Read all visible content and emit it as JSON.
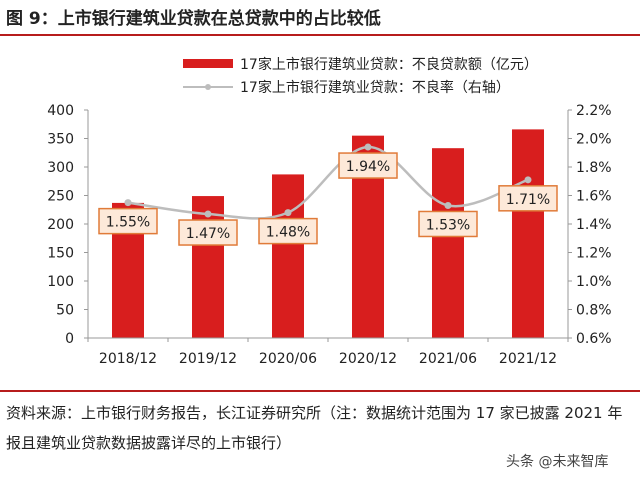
{
  "header": {
    "title": "图 9：上市银行建筑业贷款在总贷款中的占比较低"
  },
  "footer": {
    "source": "资料来源：上市银行财务报告，长江证券研究所（注：数据统计范围为 17 家已披露 2021 年报且建筑业贷款数据披露详尽的上市银行）",
    "watermark": "头条 @未来智库"
  },
  "chart_data": {
    "type": "bar",
    "categories": [
      "2018/12",
      "2019/12",
      "2020/06",
      "2020/12",
      "2021/06",
      "2021/12"
    ],
    "series": [
      {
        "name": "17家上市银行建筑业贷款：不良贷款额（亿元）",
        "kind": "bar",
        "axis": "left",
        "values": [
          237,
          249,
          287,
          355,
          333,
          366
        ],
        "color": "#d81e1e"
      },
      {
        "name": "17家上市银行建筑业贷款：不良率（右轴）",
        "kind": "line",
        "axis": "right",
        "values": [
          1.55,
          1.47,
          1.48,
          1.94,
          1.53,
          1.71
        ],
        "labels": [
          "1.55%",
          "1.47%",
          "1.48%",
          "1.94%",
          "1.53%",
          "1.71%"
        ],
        "color": "#bdbdbd"
      }
    ],
    "left_axis": {
      "range": [
        0,
        400
      ],
      "ticks": [
        "0",
        "50",
        "100",
        "150",
        "200",
        "250",
        "300",
        "350",
        "400"
      ]
    },
    "right_axis": {
      "range": [
        0.6,
        2.2
      ],
      "ticks": [
        "0.6%",
        "0.8%",
        "1.0%",
        "1.2%",
        "1.4%",
        "1.6%",
        "1.8%",
        "2.0%",
        "2.2%"
      ]
    },
    "legend_position": "top",
    "grid": false,
    "label_box_fill": "#fde9d9",
    "label_box_stroke": "#e07b39"
  }
}
